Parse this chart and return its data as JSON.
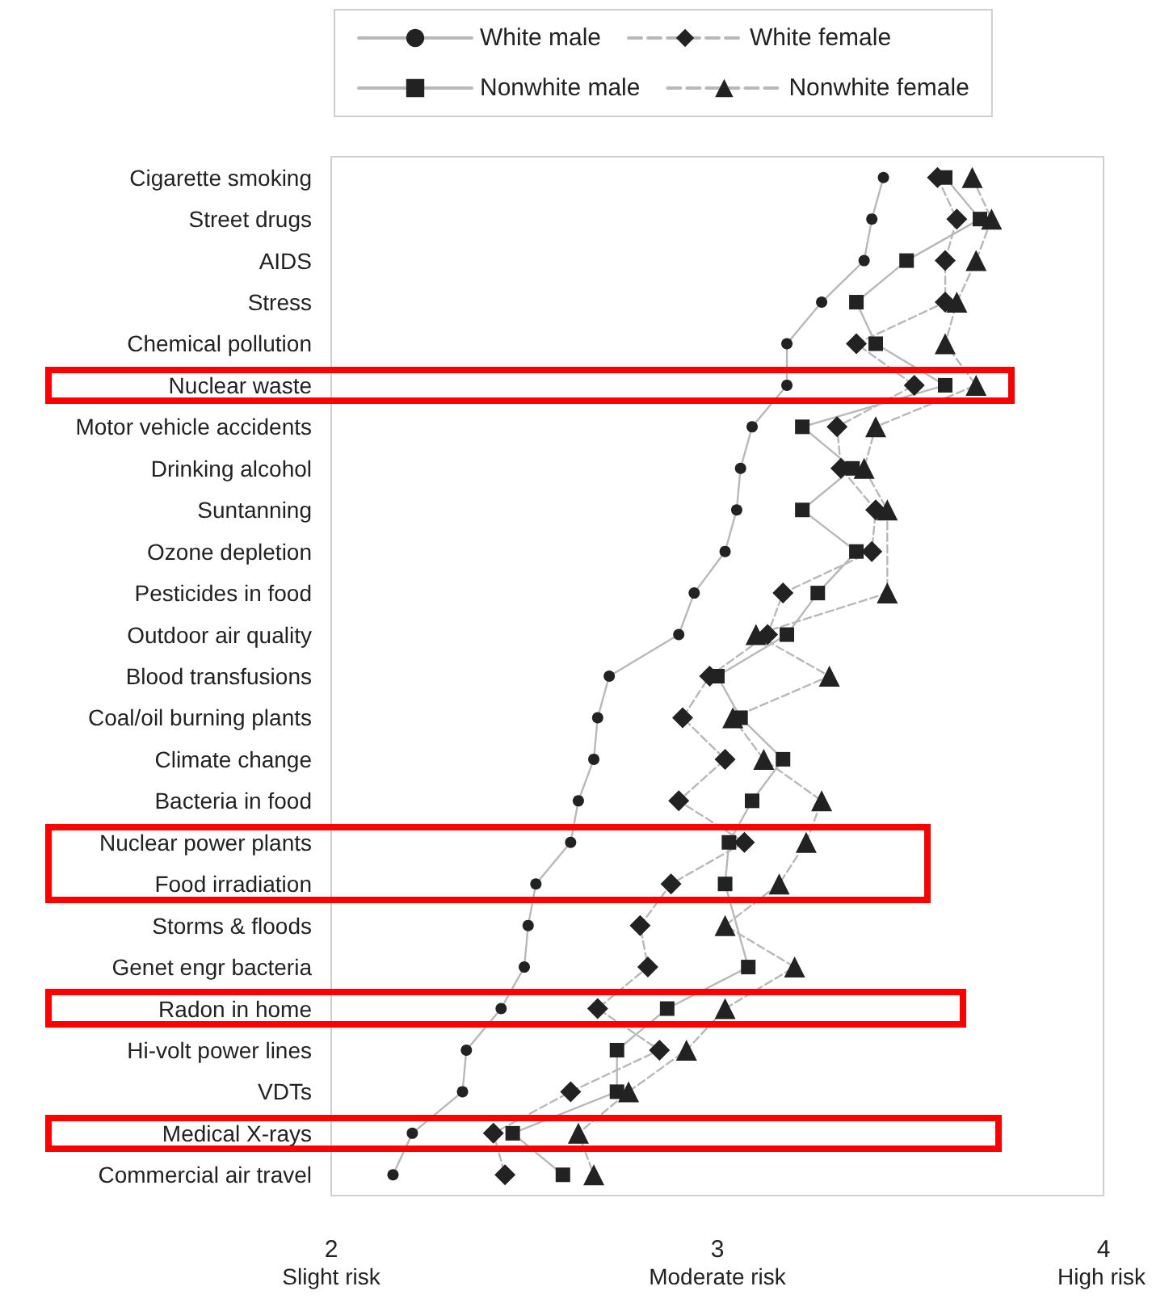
{
  "chart_data": {
    "type": "line",
    "categories": [
      "Cigarette smoking",
      "Street drugs",
      "AIDS",
      "Stress",
      "Chemical pollution",
      "Nuclear waste",
      "Motor vehicle accidents",
      "Drinking alcohol",
      "Suntanning",
      "Ozone depletion",
      "Pesticides in food",
      "Outdoor air quality",
      "Blood transfusions",
      "Coal/oil burning plants",
      "Climate change",
      "Bacteria in food",
      "Nuclear power plants",
      "Food irradiation",
      "Storms & floods",
      "Genet engr bacteria",
      "Radon in home",
      "Hi-volt power lines",
      "VDTs",
      "Medical X-rays",
      "Commercial air travel"
    ],
    "orientation": "horizontal",
    "series": [
      {
        "name": "White male",
        "color": "#222222",
        "marker": "circle",
        "line_style": "solid",
        "values": [
          3.43,
          3.4,
          3.38,
          3.27,
          3.18,
          3.18,
          3.09,
          3.06,
          3.05,
          3.02,
          2.94,
          2.9,
          2.72,
          2.69,
          2.68,
          2.64,
          2.62,
          2.53,
          2.51,
          2.5,
          2.44,
          2.35,
          2.34,
          2.21,
          2.16
        ]
      },
      {
        "name": "White female",
        "color": "#222222",
        "marker": "diamond",
        "line_style": "dashed",
        "values": [
          3.57,
          3.62,
          3.59,
          3.59,
          3.36,
          3.51,
          3.31,
          3.32,
          3.41,
          3.4,
          3.17,
          3.13,
          2.98,
          2.91,
          3.02,
          2.9,
          3.07,
          2.88,
          2.8,
          2.82,
          2.69,
          2.85,
          2.62,
          2.42,
          2.45
        ]
      },
      {
        "name": "Nonwhite male",
        "color": "#222222",
        "marker": "square",
        "line_style": "solid",
        "values": [
          3.59,
          3.68,
          3.49,
          3.36,
          3.41,
          3.59,
          3.22,
          3.35,
          3.22,
          3.36,
          3.26,
          3.18,
          3.0,
          3.06,
          3.17,
          3.09,
          3.03,
          3.02,
          null,
          3.08,
          2.87,
          2.74,
          2.74,
          2.47,
          2.6
        ]
      },
      {
        "name": "Nonwhite female",
        "color": "#222222",
        "marker": "triangle",
        "line_style": "dashed",
        "values": [
          3.66,
          3.71,
          3.67,
          3.62,
          3.59,
          3.67,
          3.41,
          3.38,
          3.44,
          null,
          3.44,
          3.1,
          3.29,
          3.04,
          3.12,
          3.27,
          3.23,
          3.16,
          3.02,
          3.2,
          3.02,
          2.92,
          2.77,
          2.64,
          2.68
        ]
      }
    ],
    "xlim": [
      2,
      4
    ],
    "xticks": [
      2,
      3,
      4
    ],
    "annotations": [
      "Slight risk",
      "Moderate risk",
      "High risk"
    ],
    "grid": false,
    "legend": "top"
  }
}
